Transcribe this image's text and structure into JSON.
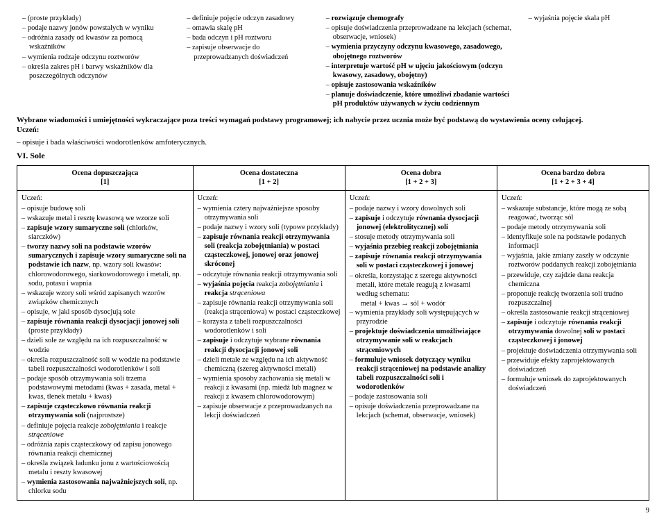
{
  "preCols": [
    [
      "(proste przykłady)",
      "podaje nazwy jonów powstałych w wyniku",
      "odróżnia zasady od kwasów za pomocą wskaźników",
      "wymienia rodzaje odczynu roztworów",
      "określa zakres pH i barwy wskaźników dla poszczególnych odczynów"
    ],
    [
      "definiuje pojęcie odczyn zasadowy",
      "omawia skalę pH",
      "bada odczyn i pH roztworu",
      "zapisuje obserwacje do przeprowadzanych doświadczeń"
    ],
    [
      "rozwiązuje chemografy",
      "opisuje doświadczenia przeprowadzane na lekcjach (schemat, obserwacje, wniosek)",
      "wymienia przyczyny odczynu kwasowego, zasadowego, obojętnego roztworów",
      "interpretuje wartość pH w ujęciu jakościowym (odczyn kwasowy, zasadowy, obojętny)",
      "opisuje zastosowania wskaźników",
      "planuje doświadczenie, które umożliwi zbadanie wartości pH produktów używanych w życiu codziennym"
    ],
    [
      "wyjaśnia pojęcie skala pH"
    ]
  ],
  "boldLines": {
    "2": [
      true,
      false,
      true,
      true,
      true,
      true
    ]
  },
  "selected": {
    "line": "Wybrane wiadomości i umiejętności wykraczające poza treści wymagań podstawy programowej; ich nabycie przez ucznia może być podstawą do wystawienia oceny celującej.",
    "uczen": "Uczeń:",
    "item": "opisuje i bada właściwości wodorotlenków amfoterycznych."
  },
  "sectionTitle": "VI. Sole",
  "headers": {
    "c1a": "Ocena dopuszczająca",
    "c1b": "[1]",
    "c2a": "Ocena dostateczna",
    "c2b": "[1 + 2]",
    "c3a": "Ocena dobra",
    "c3b": "[1 + 2 + 3]",
    "c4a": "Ocena bardzo dobra",
    "c4b": "[1 + 2 + 3 + 4]"
  },
  "uczenLabel": "Uczeń:",
  "col1": [
    "opisuje budowę soli",
    "wskazuje metal i resztę kwasową we wzorze soli",
    "<b>zapisuje wzory sumaryczne soli</b> (chlorków, siarczków)",
    "<b>tworzy nazwy soli na podstawie wzorów sumarycznych i zapisuje wzory sumaryczne soli na podstawie ich nazw</b>, np. wzory soli kwasów: chlorowodorowego, siarkowodorowego i metali, np. sodu, potasu i wapnia",
    "wskazuje wzory soli wśród zapisanych wzorów związków chemicznych",
    "opisuje, w jaki sposób dysocjują sole",
    "<b>zapisuje równania reakcji dysocjacji jonowej soli</b> (proste przykłady)",
    "dzieli sole ze względu na ich rozpuszczalność w wodzie",
    "określa rozpuszczalność soli w wodzie na podstawie tabeli rozpuszczalności wodorotlenków i soli",
    "podaje sposób otrzymywania soli trzema podstawowymi metodami (kwas + zasada, metal + kwas, tlenek metalu + kwas)",
    "<b>zapisuje cząsteczkowo równania reakcji otrzymywania soli</b> (najprostsze)",
    "definiuje pojęcia reakcje <i>zobojętniania</i> i reakcje <i>strąceniowe</i>",
    "odróżnia zapis cząsteczkowy od zapisu jonowego równania reakcji chemicznej",
    "określa związek ładunku jonu z wartościowością metalu i reszty kwasowej",
    "<b>wymienia zastosowania najważniejszych soli</b>, np. chlorku sodu"
  ],
  "col2": [
    "wymienia cztery najważniejsze sposoby otrzymywania soli",
    "podaje nazwy i wzory soli (typowe przykłady)",
    "<b>zapisuje równania reakcji otrzymywania soli (reakcja zobojętniania) w postaci cząsteczkowej, jonowej oraz jonowej skróconej</b>",
    "odczytuje równania reakcji otrzymywania soli",
    "<b>wyjaśnia pojęcia</b> reakcja <i>zobojętniania</i> i <b>reakcja</b> <i>strąceniowa</i>",
    "zapisuje równania reakcji otrzymywania soli (reakcja strąceniowa) w postaci cząsteczkowej",
    "korzysta z tabeli rozpuszczalności wodorotlenków i soli",
    "<b>zapisuje</b> i odczytuje wybrane <b>równania reakcji dysocjacji jonowej soli</b>",
    "dzieli metale ze względu na ich aktywność chemiczną (szereg aktywności metali)",
    "wymienia sposoby zachowania się metali w reakcji z kwasami (np. miedź lub magnez w reakcji z kwasem chlorowodorowym)",
    "zapisuje obserwacje z przeprowadzanych na lekcji doświadczeń"
  ],
  "col3": [
    "podaje nazwy i wzory dowolnych soli",
    "<b>zapisuje</b> i odczytuje <b>równania dysocjacji jonowej (elektrolitycznej) soli</b>",
    "stosuje metody otrzymywania soli",
    "<b>wyjaśnia przebieg reakcji zobojętniania</b>",
    "<b>zapisuje równania reakcji otrzymywania soli w postaci cząsteczkowej i jonowej</b>",
    "określa, korzystając z szeregu aktywności metali, które metale reagują z kwasami według schematu:",
    "NESTED::metal + kwas → sól + wodór",
    "wymienia przykłady soli występujących w przyrodzie",
    "<b>projektuje doświadczenia umożliwiające otrzymywanie soli w reakcjach strąceniowych</b>",
    "<b>formułuje wniosek dotyczący wyniku reakcji strąceniowej na podstawie analizy tabeli rozpuszczalności soli i wodorotlenków</b>",
    "podaje zastosowania soli",
    "opisuje doświadczenia przeprowadzane na lekcjach (schemat, obserwacje, wniosek)"
  ],
  "col4": [
    "wskazuje substancje, które mogą ze sobą reagować, tworząc sól",
    "podaje metody otrzymywania soli",
    "identyfikuje sole na podstawie podanych informacji",
    "wyjaśnia, jakie zmiany zaszły w odczynie roztworów poddanych reakcji zobojętniania",
    "przewiduje, czy zajdzie dana reakcja chemiczna",
    "proponuje reakcję tworzenia soli trudno rozpuszczalnej",
    "określa zastosowanie reakcji strąceniowej",
    "<b>zapisuje</b> i odczytuje <b>równania reakcji otrzymywania</b> dowolnej <b>soli w postaci cząsteczkowej i jonowej</b>",
    "projektuje doświadczenia otrzymywania soli",
    "przewiduje efekty zaprojektowanych doświadczeń",
    "formułuje wniosek do zaprojektowanych doświadczeń"
  ],
  "pageNumber": "9"
}
